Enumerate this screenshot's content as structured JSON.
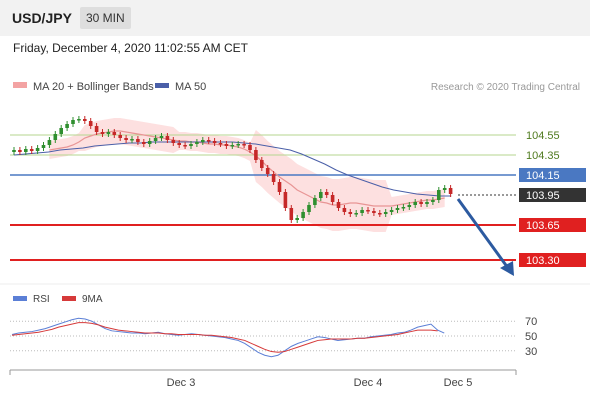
{
  "header": {
    "pair": "USD/JPY",
    "timeframe": "30 MIN",
    "datetime": "Friday, December 4, 2020 11:02:55 AM CET"
  },
  "legend": {
    "ma20_bb": "MA 20 + Bollinger Bands",
    "ma50": "MA 50",
    "copyright": "Research © 2020 Trading Central"
  },
  "levels": [
    {
      "value": 104.55,
      "label": "104.55",
      "kind": "resistance-green"
    },
    {
      "value": 104.35,
      "label": "104.35",
      "kind": "resistance-green"
    },
    {
      "value": 104.15,
      "label": "104.15",
      "kind": "pivot-blue"
    },
    {
      "value": 103.95,
      "label": "103.95",
      "kind": "current-price"
    },
    {
      "value": 103.65,
      "label": "103.65",
      "kind": "support-red"
    },
    {
      "value": 103.3,
      "label": "103.30",
      "kind": "support-red"
    }
  ],
  "rsi_panel": {
    "legend_rsi": "RSI",
    "legend_ma": "9MA",
    "ticks": [
      "70",
      "50",
      "30"
    ]
  },
  "x_axis": {
    "labels": [
      "Dec 3",
      "Dec 4",
      "Dec 5"
    ]
  },
  "colors": {
    "bullish": "#2f8f2f",
    "bearish": "#c62828",
    "ma20": "#e89595",
    "ma50": "#4a5fa8",
    "bb_fill": "#fde0e0",
    "green_level": "#b5d68f",
    "blue_level": "#4a78c2",
    "red_level": "#e02020",
    "current": "#333333",
    "arrow": "#2c5aa0",
    "rsi": "#5b7fd6",
    "rsi_ma": "#d63a3a"
  },
  "chart_data": {
    "type": "candlestick",
    "title": "USD/JPY",
    "y_range": [
      103.2,
      104.75
    ],
    "series": [
      {
        "name": "USD/JPY",
        "close": [
          104.4,
          104.38,
          104.41,
          104.39,
          104.42,
          104.45,
          104.5,
          104.56,
          104.62,
          104.66,
          104.7,
          104.71,
          104.69,
          104.64,
          104.58,
          104.56,
          104.58,
          104.55,
          104.52,
          104.5,
          104.51,
          104.48,
          104.46,
          104.49,
          104.52,
          104.54,
          104.5,
          104.47,
          104.45,
          104.44,
          104.46,
          104.48,
          104.5,
          104.49,
          104.47,
          104.46,
          104.44,
          104.45,
          104.46,
          104.45,
          104.4,
          104.3,
          104.22,
          104.16,
          104.08,
          103.98,
          103.82,
          103.7,
          103.72,
          103.78,
          103.85,
          103.92,
          103.98,
          103.95,
          103.88,
          103.82,
          103.78,
          103.76,
          103.77,
          103.8,
          103.79,
          103.77,
          103.76,
          103.78,
          103.8,
          103.82,
          103.83,
          103.85,
          103.88,
          103.86,
          103.88,
          103.9,
          104.0,
          104.02,
          103.96
        ]
      },
      {
        "name": "MA 20",
        "values": [
          104.4,
          104.41,
          104.42,
          104.43,
          104.45,
          104.48,
          104.52,
          104.54,
          104.56,
          104.57,
          104.58,
          104.59,
          104.59,
          104.58,
          104.57,
          104.56,
          104.55,
          104.54,
          104.53,
          104.52,
          104.51,
          104.5,
          104.49,
          104.49,
          104.48,
          104.48,
          104.47,
          104.46,
          104.46,
          104.45,
          104.45,
          104.44,
          104.43,
          104.41,
          104.38,
          104.34,
          104.29,
          104.23,
          104.18,
          104.13,
          104.09,
          104.05,
          104.0,
          103.97,
          103.94,
          103.91,
          103.88,
          103.87,
          103.85,
          103.85,
          103.86,
          103.87,
          103.87,
          103.86,
          103.85,
          103.84,
          103.84,
          103.84,
          103.84,
          103.85,
          103.86,
          103.87,
          103.88,
          103.89,
          103.9,
          103.9,
          103.91,
          103.92
        ]
      },
      {
        "name": "MA 50",
        "values": [
          104.35,
          104.36,
          104.37,
          104.38,
          104.4,
          104.41,
          104.42,
          104.44,
          104.45,
          104.46,
          104.47,
          104.47,
          104.48,
          104.48,
          104.48,
          104.48,
          104.48,
          104.48,
          104.48,
          104.48,
          104.47,
          104.46,
          104.44,
          104.42,
          104.4,
          104.36,
          104.31,
          104.26,
          104.2,
          104.15,
          104.11,
          104.07,
          104.03,
          104.0,
          103.98,
          103.96,
          103.95,
          103.94,
          103.94
        ]
      },
      {
        "name": "RSI",
        "ylim": [
          0,
          100
        ],
        "values": [
          52,
          54,
          55,
          56,
          58,
          60,
          63,
          66,
          69,
          72,
          74,
          73,
          70,
          65,
          60,
          57,
          56,
          55,
          54,
          54,
          53,
          54,
          55,
          53,
          52,
          51,
          52,
          53,
          52,
          51,
          50,
          49,
          48,
          46,
          44,
          40,
          34,
          28,
          24,
          22,
          24,
          30,
          36,
          40,
          43,
          46,
          49,
          48,
          46,
          44,
          45,
          46,
          47,
          47,
          49,
          50,
          51,
          52,
          54,
          55,
          58,
          62,
          64,
          66,
          58,
          54
        ]
      },
      {
        "name": "9MA",
        "ylim": [
          0,
          100
        ],
        "values": [
          51,
          52,
          53,
          54,
          55,
          57,
          59,
          62,
          64,
          66,
          68,
          68,
          67,
          65,
          62,
          60,
          58,
          57,
          56,
          55,
          54,
          54,
          54,
          53,
          53,
          52,
          52,
          52,
          52,
          51,
          51,
          50,
          49,
          48,
          46,
          44,
          40,
          36,
          32,
          29,
          28,
          29,
          32,
          35,
          38,
          41,
          44,
          45,
          46,
          46,
          46,
          46,
          47,
          47,
          48,
          49,
          50,
          51,
          52,
          54,
          56,
          58,
          58,
          58,
          57
        ]
      }
    ]
  }
}
